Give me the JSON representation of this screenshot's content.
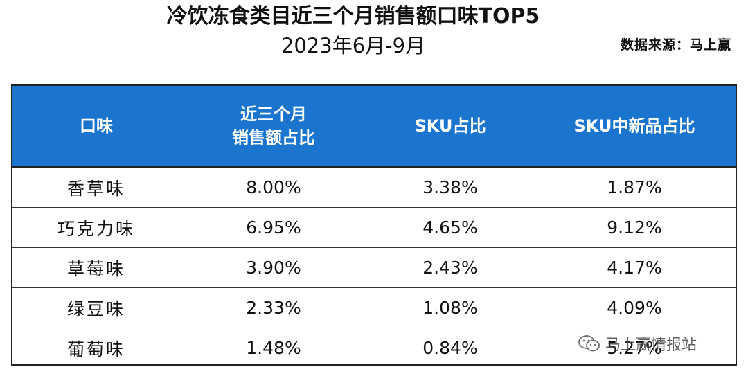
{
  "title": {
    "line1": "冷饮冻食类目近三个月销售额口味TOP5",
    "line2": "2023年6月-9月"
  },
  "source": "数据来源：马上赢",
  "table": {
    "headers": [
      {
        "lines": [
          "口味"
        ]
      },
      {
        "lines": [
          "近三个月",
          "销售额占比"
        ]
      },
      {
        "lines": [
          "SKU占比"
        ]
      },
      {
        "lines": [
          "SKU中新品占比"
        ]
      }
    ],
    "rows": [
      {
        "flavor": "香草味",
        "sales_share": "8.00%",
        "sku_share": "3.38%",
        "new_sku_share": "1.87%"
      },
      {
        "flavor": "巧克力味",
        "sales_share": "6.95%",
        "sku_share": "4.65%",
        "new_sku_share": "9.12%"
      },
      {
        "flavor": "草莓味",
        "sales_share": "3.90%",
        "sku_share": "2.43%",
        "new_sku_share": "4.17%"
      },
      {
        "flavor": "绿豆味",
        "sales_share": "2.33%",
        "sku_share": "1.08%",
        "new_sku_share": "4.09%"
      },
      {
        "flavor": "葡萄味",
        "sales_share": "1.48%",
        "sku_share": "0.84%",
        "new_sku_share": "5.27%"
      }
    ]
  },
  "watermark": {
    "icon": "wechat-icon",
    "text": "马上赢情报站"
  },
  "colors": {
    "header_bg": "#1b75cf",
    "header_text": "#ffffff",
    "border": "#222222"
  }
}
